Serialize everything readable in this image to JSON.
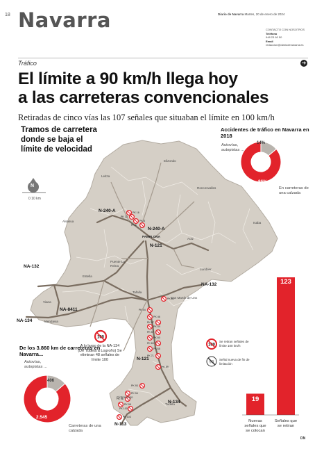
{
  "header": {
    "page_number": "18",
    "section": "Navarra",
    "newspaper": "Diario de Navarra",
    "date": "Martes, 20 de enero de 2024",
    "contact_heading": "CONTACTO CON NOSOTROS",
    "phone_label": "Teléfono",
    "phone": "948 23 60 50",
    "email_label": "Email",
    "email": "redaccion@diariodenavarra.es"
  },
  "article": {
    "topic": "Tráfico",
    "headline_line1": "El límite a 90 km/h llega hoy",
    "headline_line2": "a las carreteras convencionales",
    "subhead": "Retiradas de cinco vías las 107 señales que situaban el límite en 100 km/h"
  },
  "map": {
    "title_line1": "Tramos de carretera",
    "title_line2": "donde se baja el",
    "title_line3": "límite de velocidad",
    "scale": "0          10 km",
    "north": "N",
    "towns": [
      "Elizondo",
      "Leitza",
      "Roncesvalles",
      "Alsasua",
      "PAMPLONA",
      "Aoiz",
      "Isaba",
      "Estella",
      "Puente La Reina",
      "Lumbier",
      "Tafalla",
      "Viana",
      "Mendavia",
      "San Martín de Unx",
      "Cintruénigo",
      "Tudela"
    ],
    "roads": [
      "N-240-A",
      "N-240-A",
      "N-121",
      "NA-132",
      "NA-132",
      "NA-134",
      "NA-8411",
      "N-121",
      "N-134",
      "N-113"
    ],
    "pk_labels": [
      "PK 16",
      "PK 12",
      "PK 8",
      "PK 6",
      "PK 61",
      "PK 44",
      "PK 46",
      "PK 47",
      "PK 54",
      "PK 57",
      "PK 60",
      "PK 63",
      "PK 65",
      "PK 71",
      "PK 89",
      "PK 93",
      "PK 94",
      "PK 96",
      "PK 98",
      "PK 100",
      "PK 103"
    ],
    "note": "A lo largo de la NA-134 (De Tudela a Logroño) Se eliminan 48 señales de límite 100",
    "legend_removed": "Se retiran señales de límite 100 km/h",
    "legend_new": "Señal nueva de fin de limitación"
  },
  "accidents": {
    "title": "Accidentes de tráfico en Navarra en 2018",
    "autovias_label": "Autovías, autopistas ...",
    "convencionales_label": "En carreteras de una calzada",
    "autovias_pct_label": "14%",
    "convencionales_pct_label": "86%"
  },
  "network": {
    "title": "De los 3.860 km de carreteras en Navarra...",
    "autovias_label": "Autovías, autopistas ...",
    "convencionales_label": "Carreteras de una calzada",
    "autovias_km": "406",
    "convencionales_km": "2.545"
  },
  "signs": {
    "new_value": "19",
    "new_label": "Nuevas señales que se colocan",
    "removed_value": "123",
    "removed_label": "Señales que se retiran"
  },
  "footer": "DN",
  "colors": {
    "red": "#e2232b",
    "map_land": "#d5cfc6",
    "road": "#7a6d60",
    "gray": "#b9b4ae"
  },
  "chart_data": [
    {
      "type": "pie",
      "title": "Accidentes de tráfico en Navarra en 2018",
      "categories": [
        "Autovías, autopistas ...",
        "En carreteras de una calzada"
      ],
      "values": [
        14,
        86
      ]
    },
    {
      "type": "pie",
      "title": "De los 3.860 km de carreteras en Navarra...",
      "categories": [
        "Autovías, autopistas ...",
        "Carreteras de una calzada"
      ],
      "values": [
        406,
        2545
      ]
    },
    {
      "type": "bar",
      "categories": [
        "Nuevas señales que se colocan",
        "Señales que se retiran"
      ],
      "values": [
        19,
        123
      ]
    }
  ]
}
